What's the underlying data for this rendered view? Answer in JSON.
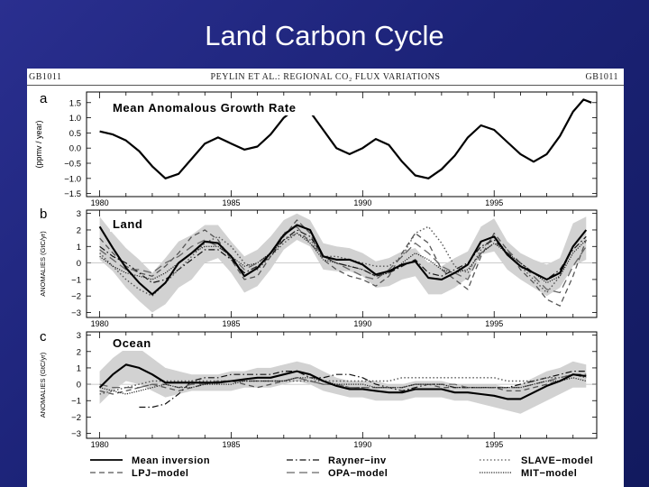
{
  "slide": {
    "title": "Land Carbon Cycle"
  },
  "figure": {
    "header_left": "GB1011",
    "header_center": "PEYLIN ET AL.: REGIONAL CO₂ FLUX VARIATIONS",
    "header_right": "GB1011"
  },
  "colors": {
    "background": "#1c2378",
    "band": "#d2d2d2",
    "line": "#000000"
  },
  "chart_data": [
    {
      "type": "line",
      "panel_letter": "a",
      "title": "Mean Anomalous Growth Rate",
      "ylabel": "(ppmv / year)",
      "xlim": [
        1979.5,
        1998.9
      ],
      "ylim": [
        -1.6,
        1.85
      ],
      "yticks": [
        -1.5,
        -1.0,
        -0.5,
        0.0,
        0.5,
        1.0,
        1.5
      ],
      "ytick_labels": [
        "−1.5",
        "−1.0",
        "−0.5",
        "0.0",
        "0.5",
        "1.0",
        "1.5"
      ],
      "xticks": [
        1980,
        1985,
        1990,
        1995
      ],
      "xtick_labels": [
        "1980",
        "1985",
        "1990",
        "1995"
      ],
      "series": [
        {
          "x": [
            1980,
            1980.5,
            1981,
            1981.5,
            1982,
            1982.5,
            1983,
            1983.5,
            1984,
            1984.5,
            1985,
            1985.5,
            1986,
            1986.5,
            1987,
            1987.5,
            1988,
            1988.5,
            1989,
            1989.5,
            1990,
            1990.5,
            1991,
            1991.5,
            1992,
            1992.5,
            1993,
            1993.5,
            1994,
            1994.5,
            1995,
            1995.5,
            1996,
            1996.5,
            1997,
            1997.5,
            1998,
            1998.4,
            1998.7
          ],
          "y": [
            0.55,
            0.45,
            0.25,
            -0.1,
            -0.6,
            -1.0,
            -0.85,
            -0.35,
            0.15,
            0.35,
            0.15,
            -0.05,
            0.05,
            0.45,
            1.0,
            1.35,
            1.2,
            0.6,
            0.0,
            -0.2,
            0.0,
            0.3,
            0.1,
            -0.45,
            -0.9,
            -1.0,
            -0.7,
            -0.25,
            0.35,
            0.75,
            0.6,
            0.2,
            -0.2,
            -0.45,
            -0.2,
            0.4,
            1.2,
            1.6,
            1.5
          ]
        }
      ]
    },
    {
      "type": "line",
      "panel_letter": "b",
      "title": "Land",
      "ylabel": "ANOMALIES (GtC/yr)",
      "xlim": [
        1979.5,
        1998.9
      ],
      "ylim": [
        -3.3,
        3.2
      ],
      "yticks": [
        -3,
        -2,
        -1,
        0,
        1,
        2,
        3
      ],
      "ytick_labels": [
        "−3",
        "−2",
        "−1",
        "0",
        "1",
        "2",
        "3"
      ],
      "xticks": [
        1980,
        1985,
        1990,
        1995
      ],
      "xtick_labels": [
        "1980",
        "1985",
        "1990",
        "1995"
      ],
      "x": [
        1980,
        1980.5,
        1981,
        1981.5,
        1982,
        1982.5,
        1983,
        1983.5,
        1984,
        1984.5,
        1985,
        1985.5,
        1986,
        1986.5,
        1987,
        1987.5,
        1988,
        1988.5,
        1989,
        1989.5,
        1990,
        1990.5,
        1991,
        1991.5,
        1992,
        1992.5,
        1993,
        1993.5,
        1994,
        1994.5,
        1995,
        1995.5,
        1996,
        1996.5,
        1997,
        1997.5,
        1998,
        1998.5
      ],
      "band": {
        "lower": [
          0.2,
          -0.5,
          -1.5,
          -2.3,
          -3.0,
          -2.5,
          -1.5,
          -1.0,
          0.0,
          0.3,
          -0.6,
          -1.8,
          -1.4,
          -0.4,
          0.8,
          1.4,
          1.0,
          -0.4,
          -0.5,
          -0.5,
          -0.8,
          -1.5,
          -1.4,
          -1.0,
          -0.8,
          -1.9,
          -1.9,
          -1.5,
          -0.9,
          0.5,
          0.7,
          -0.4,
          -1.0,
          -1.5,
          -2.0,
          -1.5,
          -0.2,
          0.2
        ],
        "upper": [
          2.8,
          1.8,
          0.9,
          0.2,
          -0.6,
          0.3,
          1.3,
          1.7,
          2.3,
          2.3,
          1.3,
          0.4,
          0.8,
          1.6,
          2.6,
          3.0,
          2.6,
          1.2,
          1.0,
          0.9,
          0.6,
          0.1,
          0.3,
          0.7,
          0.9,
          0.0,
          -0.2,
          0.3,
          0.7,
          2.2,
          2.7,
          1.3,
          0.6,
          0.2,
          -0.1,
          0.3,
          2.4,
          2.8
        ]
      },
      "series": [
        {
          "name": "Mean inversion",
          "style": "solid",
          "y": [
            2.2,
            0.9,
            -0.3,
            -1.2,
            -1.9,
            -1.2,
            0.0,
            0.6,
            1.3,
            1.2,
            0.4,
            -0.8,
            -0.3,
            0.6,
            1.7,
            2.3,
            2.0,
            0.4,
            0.2,
            0.2,
            -0.1,
            -0.7,
            -0.5,
            -0.1,
            0.1,
            -0.9,
            -1.0,
            -0.6,
            -0.1,
            1.3,
            1.6,
            0.5,
            -0.2,
            -0.6,
            -1.0,
            -0.6,
            1.0,
            2.0
          ]
        },
        {
          "name": "LPJ-model",
          "style": "dashed",
          "y": [
            1.5,
            0.6,
            -0.2,
            -0.6,
            -0.8,
            -0.2,
            0.6,
            1.6,
            2.0,
            1.4,
            0.2,
            -1.0,
            -0.8,
            0.4,
            1.6,
            2.6,
            1.8,
            0.2,
            -0.4,
            -0.8,
            -1.0,
            -1.4,
            -0.8,
            0.6,
            1.8,
            1.2,
            -0.4,
            -1.0,
            -1.6,
            0.4,
            1.8,
            0.8,
            -0.4,
            -1.2,
            -2.2,
            -2.6,
            -0.8,
            1.4
          ]
        },
        {
          "name": "Rayner-inv",
          "style": "dashdot",
          "y": [
            1.0,
            0.4,
            0.0,
            -0.6,
            -1.2,
            -1.0,
            -0.4,
            0.2,
            0.8,
            0.8,
            0.2,
            -0.6,
            -0.2,
            0.4,
            1.4,
            2.0,
            1.6,
            0.4,
            0.0,
            -0.2,
            -0.4,
            -0.8,
            -0.6,
            -0.2,
            0.2,
            -0.6,
            -0.8,
            -0.4,
            0.0,
            1.0,
            1.4,
            0.6,
            0.0,
            -0.6,
            -1.0,
            -0.4,
            0.8,
            1.6
          ]
        },
        {
          "name": "OPA-model",
          "style": "longdash",
          "y": [
            0.8,
            0.2,
            -0.4,
            -0.4,
            -0.6,
            0.0,
            0.4,
            1.0,
            1.4,
            1.0,
            0.4,
            -0.4,
            0.0,
            0.6,
            1.8,
            2.2,
            1.2,
            0.4,
            0.0,
            -0.4,
            -0.8,
            -1.0,
            -0.4,
            0.4,
            1.2,
            0.6,
            -0.2,
            -0.6,
            -1.0,
            0.6,
            1.2,
            0.8,
            0.0,
            -0.8,
            -1.6,
            -1.8,
            -0.2,
            1.0
          ]
        },
        {
          "name": "SLAVE-model",
          "style": "dotted",
          "y": [
            0.6,
            -0.2,
            -1.0,
            -1.6,
            -2.0,
            -1.2,
            -0.4,
            0.4,
            1.2,
            1.6,
            1.0,
            0.0,
            -0.4,
            0.4,
            1.2,
            1.8,
            1.4,
            0.4,
            0.4,
            0.2,
            0.0,
            -0.2,
            -0.2,
            0.4,
            1.8,
            2.2,
            1.2,
            -0.2,
            -0.6,
            0.8,
            1.6,
            0.6,
            -0.2,
            -1.0,
            -1.8,
            -0.8,
            1.0,
            2.0
          ]
        },
        {
          "name": "MIT-model",
          "style": "densedot",
          "y": [
            0.4,
            -0.2,
            -0.6,
            -0.8,
            -1.0,
            -0.6,
            0.0,
            0.6,
            1.0,
            1.0,
            0.4,
            -0.2,
            0.0,
            0.6,
            1.4,
            1.8,
            1.2,
            0.2,
            0.0,
            -0.2,
            -0.4,
            -0.8,
            -0.6,
            0.0,
            0.6,
            0.2,
            -0.4,
            -0.6,
            -0.4,
            0.6,
            1.2,
            0.6,
            0.0,
            -0.6,
            -1.2,
            -0.8,
            0.6,
            1.4
          ]
        }
      ]
    },
    {
      "type": "line",
      "panel_letter": "c",
      "title": "Ocean",
      "ylabel": "ANOMALIES (GtC/yr)",
      "xlim": [
        1979.5,
        1998.9
      ],
      "ylim": [
        -3.3,
        3.2
      ],
      "yticks": [
        -3,
        -2,
        -1,
        0,
        1,
        2,
        3
      ],
      "ytick_labels": [
        "−3",
        "−2",
        "−1",
        "0",
        "1",
        "2",
        "3"
      ],
      "xticks": [
        1980,
        1985,
        1990,
        1995
      ],
      "xtick_labels": [
        "1980",
        "1985",
        "1990",
        "1995"
      ],
      "x": [
        1980,
        1980.5,
        1981,
        1981.5,
        1982,
        1982.5,
        1983,
        1983.5,
        1984,
        1984.5,
        1985,
        1985.5,
        1986,
        1986.5,
        1987,
        1987.5,
        1988,
        1988.5,
        1989,
        1989.5,
        1990,
        1990.5,
        1991,
        1991.5,
        1992,
        1992.5,
        1993,
        1993.5,
        1994,
        1994.5,
        1995,
        1995.5,
        1996,
        1996.5,
        1997,
        1997.5,
        1998,
        1998.5
      ],
      "band": {
        "lower": [
          -1.2,
          -0.4,
          0.2,
          0.0,
          -0.4,
          -0.8,
          -0.6,
          -0.4,
          -0.4,
          -0.4,
          -0.4,
          -0.2,
          -0.2,
          -0.2,
          0.0,
          0.2,
          0.0,
          -0.4,
          -0.6,
          -0.8,
          -0.8,
          -1.0,
          -1.0,
          -1.0,
          -0.8,
          -0.8,
          -0.8,
          -1.0,
          -1.0,
          -1.2,
          -1.4,
          -1.6,
          -1.8,
          -1.4,
          -1.0,
          -0.6,
          -0.2,
          -0.2
        ],
        "upper": [
          0.8,
          1.6,
          2.2,
          2.2,
          1.6,
          1.0,
          0.8,
          0.6,
          0.6,
          0.6,
          0.8,
          0.8,
          1.0,
          1.0,
          1.2,
          1.4,
          1.2,
          0.8,
          0.4,
          0.2,
          0.2,
          0.2,
          0.0,
          0.0,
          0.2,
          0.2,
          0.2,
          0.0,
          0.0,
          0.0,
          0.0,
          -0.2,
          0.0,
          0.4,
          0.8,
          1.0,
          1.4,
          1.2
        ]
      },
      "series": [
        {
          "name": "Mean inversion",
          "style": "solid",
          "y": [
            -0.2,
            0.6,
            1.2,
            1.0,
            0.6,
            0.1,
            0.1,
            0.1,
            0.1,
            0.1,
            0.2,
            0.3,
            0.4,
            0.4,
            0.6,
            0.8,
            0.6,
            0.2,
            -0.1,
            -0.3,
            -0.3,
            -0.4,
            -0.5,
            -0.5,
            -0.3,
            -0.3,
            -0.3,
            -0.5,
            -0.5,
            -0.6,
            -0.7,
            -0.9,
            -0.9,
            -0.5,
            -0.1,
            0.2,
            0.6,
            0.5
          ]
        },
        {
          "name": "LPJ-model",
          "style": "dashed",
          "y": [
            -0.4,
            -0.6,
            -0.4,
            -0.2,
            0.0,
            -0.2,
            -0.4,
            -0.2,
            0.0,
            0.2,
            0.2,
            0.0,
            -0.2,
            0.0,
            0.2,
            0.4,
            0.2,
            0.0,
            0.0,
            -0.2,
            -0.2,
            -0.2,
            -0.2,
            -0.2,
            0.0,
            0.0,
            -0.2,
            -0.2,
            -0.2,
            -0.2,
            -0.2,
            -0.4,
            -0.4,
            -0.2,
            0.0,
            0.2,
            0.6,
            0.6
          ]
        },
        {
          "name": "Rayner-inv",
          "style": "dashdot",
          "y": [
            null,
            null,
            null,
            -1.4,
            -1.4,
            -1.2,
            -0.6,
            0.2,
            0.4,
            0.4,
            0.6,
            0.6,
            0.6,
            0.6,
            0.8,
            0.8,
            0.4,
            0.4,
            0.6,
            0.6,
            0.4,
            0.0,
            -0.2,
            -0.4,
            -0.2,
            0.0,
            0.0,
            -0.2,
            -0.2,
            -0.2,
            -0.2,
            -0.2,
            0.0,
            0.2,
            0.4,
            0.6,
            0.8,
            0.8
          ]
        },
        {
          "name": "OPA-model",
          "style": "longdash",
          "y": [
            0.0,
            -0.2,
            -0.2,
            -0.2,
            0.0,
            0.0,
            -0.2,
            0.0,
            0.0,
            0.2,
            0.2,
            0.2,
            0.2,
            0.2,
            0.2,
            0.4,
            0.2,
            0.0,
            0.0,
            -0.2,
            -0.2,
            -0.2,
            -0.2,
            -0.2,
            0.0,
            0.0,
            0.0,
            0.0,
            -0.2,
            -0.2,
            -0.2,
            -0.2,
            -0.2,
            0.0,
            0.2,
            0.4,
            0.6,
            0.4
          ]
        },
        {
          "name": "SLAVE-model",
          "style": "dotted",
          "y": [
            -0.6,
            -0.4,
            -0.2,
            0.0,
            0.2,
            0.2,
            0.2,
            0.2,
            0.2,
            0.2,
            0.2,
            0.2,
            0.2,
            0.2,
            0.2,
            0.2,
            0.2,
            0.2,
            0.2,
            0.2,
            0.2,
            0.2,
            0.2,
            0.4,
            0.4,
            0.4,
            0.4,
            0.4,
            0.4,
            0.4,
            0.4,
            0.2,
            0.2,
            0.2,
            0.4,
            0.4,
            0.6,
            0.4
          ]
        },
        {
          "name": "MIT-model",
          "style": "densedot",
          "y": [
            -0.2,
            -0.4,
            -0.6,
            -0.4,
            -0.2,
            0.0,
            -0.2,
            -0.2,
            0.0,
            0.0,
            0.0,
            0.2,
            0.2,
            0.2,
            0.2,
            0.4,
            0.4,
            0.2,
            0.0,
            0.0,
            0.0,
            -0.2,
            -0.2,
            -0.2,
            0.0,
            0.0,
            0.0,
            -0.2,
            -0.2,
            -0.2,
            -0.2,
            -0.2,
            -0.2,
            0.0,
            0.2,
            0.2,
            0.4,
            0.2
          ]
        }
      ]
    }
  ],
  "legend": {
    "items": [
      {
        "label": "Mean inversion",
        "style": "solid"
      },
      {
        "label": "LPJ−model",
        "style": "dashed"
      },
      {
        "label": "Rayner−inv",
        "style": "dashdot"
      },
      {
        "label": "OPA−model",
        "style": "longdash"
      },
      {
        "label": "SLAVE−model",
        "style": "dotted"
      },
      {
        "label": "MIT−model",
        "style": "densedot"
      }
    ]
  }
}
